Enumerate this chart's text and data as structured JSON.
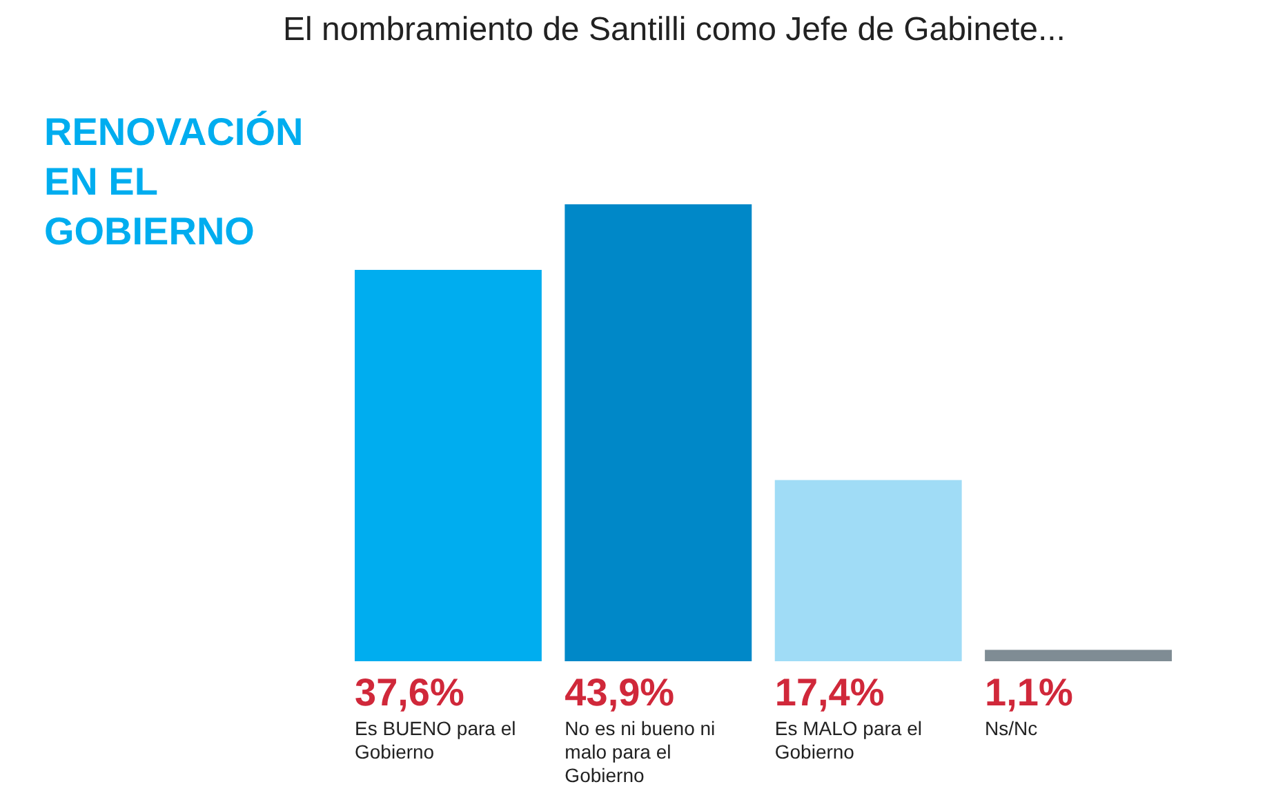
{
  "chart_data": {
    "type": "bar",
    "title": "El nombramiento de Santilli como Jefe de Gabinete...",
    "subtitle": "RENOVACIÓN EN EL GOBIERNO",
    "categories": [
      "Es BUENO para el Gobierno",
      "No es ni bueno ni malo para el Gobierno",
      "Es MALO para el Gobierno",
      "Ns/Nc"
    ],
    "values": [
      37.6,
      43.9,
      17.4,
      1.1
    ],
    "colors": [
      "#00adef",
      "#0088c8",
      "#a0dcf6",
      "#7f8c94"
    ],
    "value_labels": [
      "37,6%",
      "43,9%",
      "17,4%",
      "1,1%"
    ]
  }
}
